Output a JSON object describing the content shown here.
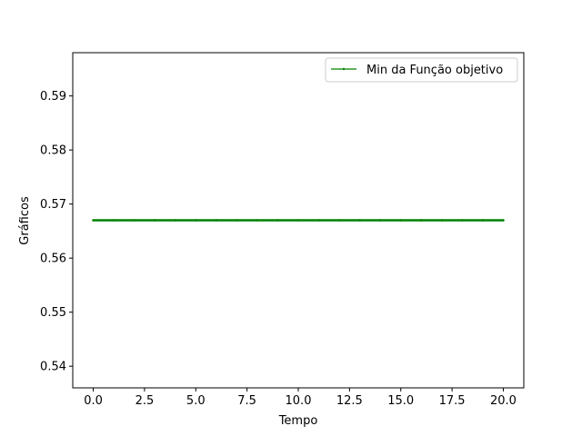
{
  "chart_data": {
    "type": "line",
    "title": "",
    "xlabel": "Tempo",
    "ylabel": "Gráficos",
    "xlim": [
      -1,
      21
    ],
    "ylim": [
      0.536,
      0.598
    ],
    "xticks": [
      0.0,
      2.5,
      5.0,
      7.5,
      10.0,
      12.5,
      15.0,
      17.5,
      20.0
    ],
    "xtick_labels": [
      "0.0",
      "2.5",
      "5.0",
      "7.5",
      "10.0",
      "12.5",
      "15.0",
      "17.5",
      "20.0"
    ],
    "yticks": [
      0.54,
      0.55,
      0.56,
      0.57,
      0.58,
      0.59
    ],
    "ytick_labels": [
      "0.54",
      "0.55",
      "0.56",
      "0.57",
      "0.58",
      "0.59"
    ],
    "grid": false,
    "legend_position": "top-right",
    "series": [
      {
        "name": "Min da Função objetivo",
        "color": "#008000",
        "marker": "point",
        "x": [
          0,
          1,
          2,
          3,
          4,
          5,
          6,
          7,
          8,
          9,
          10,
          11,
          12,
          13,
          14,
          15,
          16,
          17,
          18,
          19,
          20
        ],
        "y": [
          0.567,
          0.567,
          0.567,
          0.567,
          0.567,
          0.567,
          0.567,
          0.567,
          0.567,
          0.567,
          0.567,
          0.567,
          0.567,
          0.567,
          0.567,
          0.567,
          0.567,
          0.567,
          0.567,
          0.567,
          0.567
        ]
      }
    ]
  }
}
